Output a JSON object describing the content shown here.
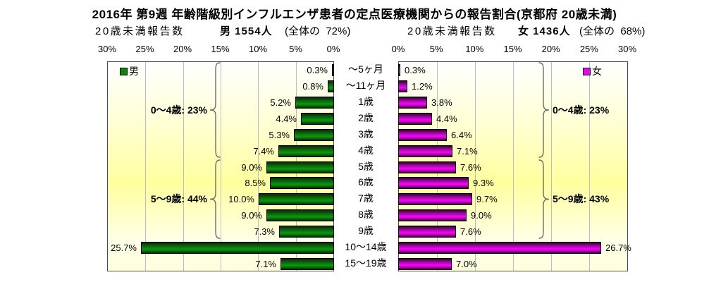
{
  "title": "2016年 第9週 年齢階級別インフルエンザ患者の定点医療機関からの報告割合(京都府 20歳未満)",
  "header": {
    "male_report": "20歳未満報告数",
    "male_count": "男 1554人",
    "male_total": "(全体の  72%)",
    "female_report": "20歳未満報告数",
    "female_count": "女 1436人",
    "female_total": "(全体の  68%)"
  },
  "legend": {
    "male": "男",
    "female": "女"
  },
  "colors": {
    "male_bar": "#008000",
    "female_bar": "#FF00FF",
    "gridline": "#BDBDBD",
    "plot_bg_top": "#FFFFFF",
    "plot_bg_mid": "#FFFF9E",
    "brace": "#6B6B6B"
  },
  "chart_data": {
    "type": "bar",
    "orientation": "horizontal-pyramid",
    "title": "2016年 第9週 年齢階級別インフルエンザ患者の定点医療機関からの報告割合(京都府 20歳未満)",
    "categories": [
      "〜5ヶ月",
      "〜11ヶ月",
      "1歳",
      "2歳",
      "3歳",
      "4歳",
      "5歳",
      "6歳",
      "7歳",
      "8歳",
      "9歳",
      "10〜14歳",
      "15〜19歳"
    ],
    "series": [
      {
        "name": "男",
        "side": "left",
        "values": [
          0.3,
          0.8,
          5.2,
          4.4,
          5.3,
          7.4,
          9.0,
          8.5,
          10.0,
          9.0,
          7.3,
          25.7,
          7.1
        ],
        "labels": [
          "0.3%",
          "0.8%",
          "5.2%",
          "4.4%",
          "5.3%",
          "7.4%",
          "9.0%",
          "8.5%",
          "10.0%",
          "9.0%",
          "7.3%",
          "25.7%",
          "7.1%"
        ]
      },
      {
        "name": "女",
        "side": "right",
        "values": [
          0.3,
          1.2,
          3.8,
          4.4,
          6.4,
          7.1,
          7.6,
          9.3,
          9.7,
          9.0,
          7.6,
          26.7,
          7.0
        ],
        "labels": [
          "0.3%",
          "1.2%",
          "3.8%",
          "4.4%",
          "6.4%",
          "7.1%",
          "7.6%",
          "9.3%",
          "9.7%",
          "9.0%",
          "7.6%",
          "26.7%",
          "7.0%"
        ]
      }
    ],
    "xlim": [
      0,
      30
    ],
    "ticks_male": [
      "30%",
      "25%",
      "20%",
      "15%",
      "10%",
      "5%",
      "0%"
    ],
    "ticks_female": [
      "0%",
      "5%",
      "10%",
      "15%",
      "20%",
      "25%",
      "30%"
    ],
    "grid": true,
    "legend_position": "inside-top",
    "annotations_male": [
      {
        "label": "0〜4歳: 23%",
        "from_row": 0,
        "to_row": 5
      },
      {
        "label": "5〜9歳: 44%",
        "from_row": 6,
        "to_row": 10
      }
    ],
    "annotations_female": [
      {
        "label": "0〜4歳: 23%",
        "from_row": 0,
        "to_row": 5
      },
      {
        "label": "5〜9歳: 43%",
        "from_row": 6,
        "to_row": 10
      }
    ]
  }
}
